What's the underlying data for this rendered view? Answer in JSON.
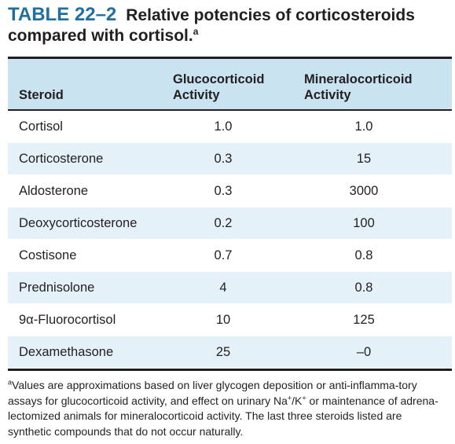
{
  "title": {
    "number": "TABLE 22–2",
    "text": "Relative potencies of corticosteroids compared with cortisol.",
    "marker": "a"
  },
  "table": {
    "headers": {
      "steroid": "Steroid",
      "gluco_line1": "Glucocorticoid",
      "gluco_line2": "Activity",
      "mineral_line1": "Mineralocorticoid",
      "mineral_line2": "Activity"
    },
    "rows": [
      {
        "steroid": "Cortisol",
        "gluco": "1.0",
        "mineral": "1.0"
      },
      {
        "steroid": "Corticosterone",
        "gluco": "0.3",
        "mineral": "15"
      },
      {
        "steroid": "Aldosterone",
        "gluco": "0.3",
        "mineral": "3000"
      },
      {
        "steroid": "Deoxycorticosterone",
        "gluco": "0.2",
        "mineral": "100"
      },
      {
        "steroid": "Costisone",
        "gluco": "0.7",
        "mineral": "0.8"
      },
      {
        "steroid": "Prednisolone",
        "gluco": "4",
        "mineral": "0.8"
      },
      {
        "steroid": "9α-Fluorocortisol",
        "gluco": "10",
        "mineral": "125"
      },
      {
        "steroid": "Dexamethasone",
        "gluco": "25",
        "mineral": "–0"
      }
    ]
  },
  "footnote": {
    "marker": "a",
    "part1": "Values are approximations based on liver glycogen deposition or anti-inflamma-tory assays for glucocorticoid activity, and effect on urinary Na",
    "plus1": "+",
    "slash_k": "/K",
    "plus2": "+",
    "part2": " or maintenance of adrena-lectomized animals for mineralocorticoid activity. The last three steroids listed are synthetic compounds that do not occur naturally."
  },
  "colors": {
    "title_number": "#1f6f9f",
    "header_bg": "#c9e3f1",
    "alt_row_bg": "#e4f1f8",
    "text": "#231f20"
  }
}
